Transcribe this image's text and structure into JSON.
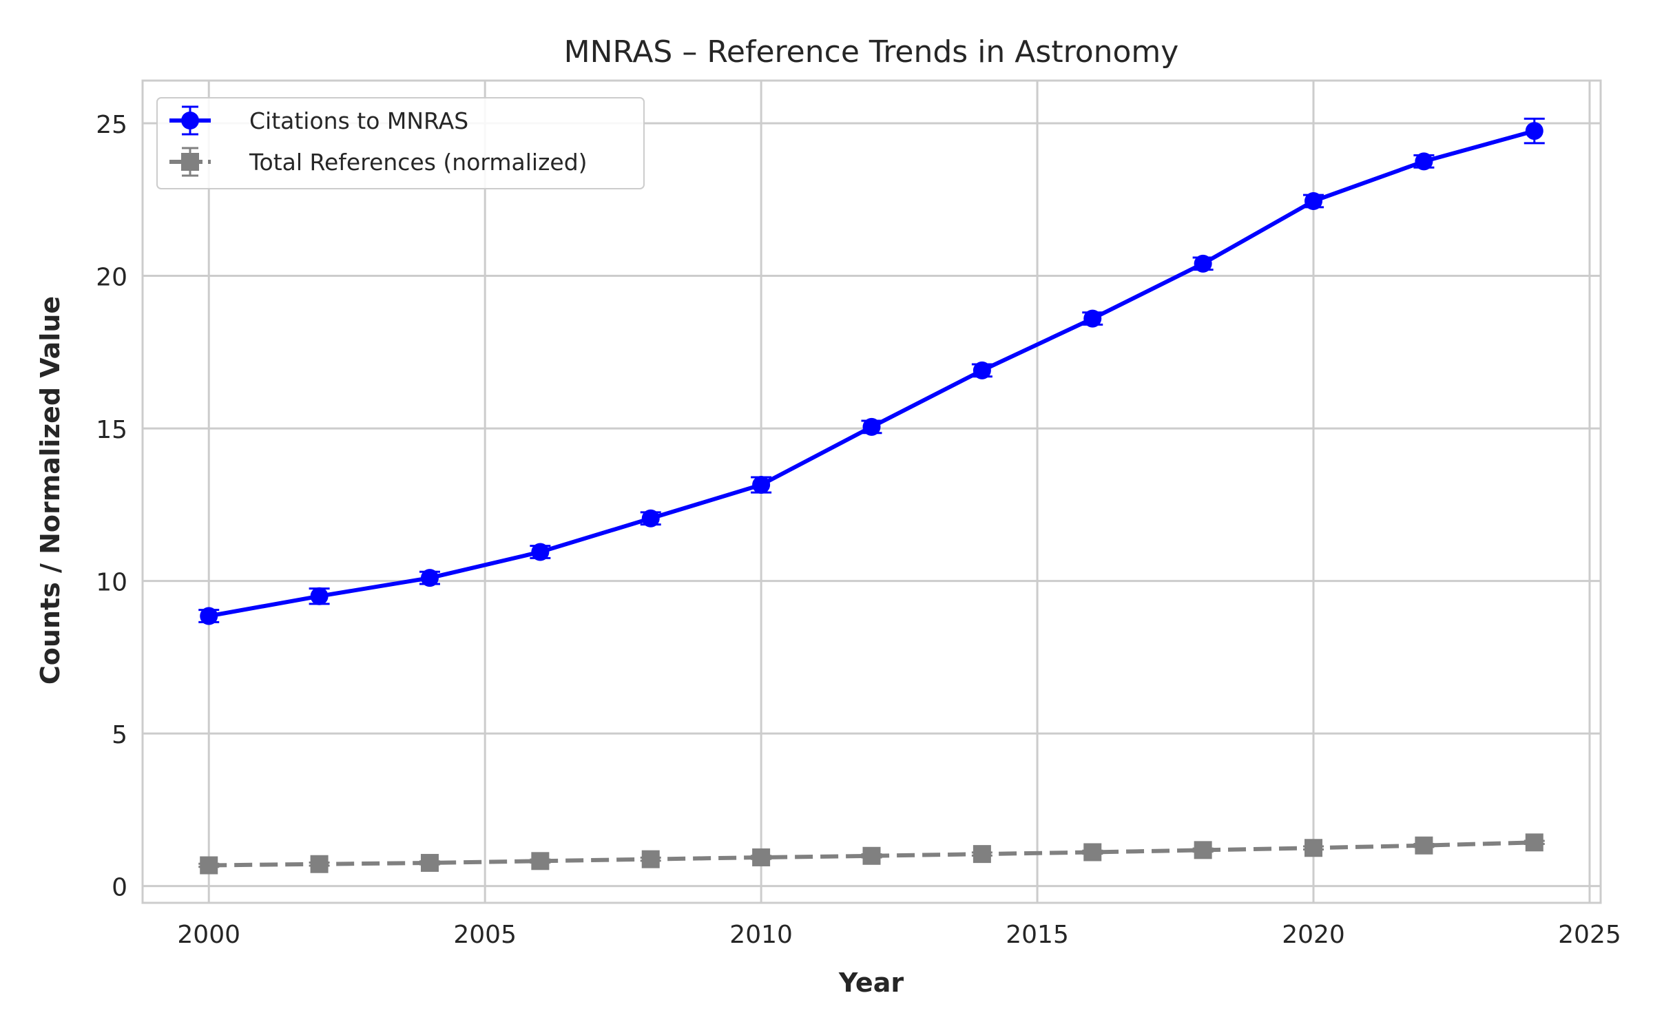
{
  "chart_data": {
    "type": "line",
    "title": "MNRAS – Reference Trends in Astronomy",
    "xlabel": "Year",
    "ylabel": "Counts / Normalized Value",
    "xlim": [
      1998.8,
      2025.2
    ],
    "ylim": [
      -0.55,
      26.4
    ],
    "xticks": [
      2000,
      2005,
      2010,
      2015,
      2020,
      2025
    ],
    "yticks": [
      0,
      5,
      10,
      15,
      20,
      25
    ],
    "grid": true,
    "legend_position": "upper left",
    "x": [
      2000,
      2002,
      2004,
      2006,
      2008,
      2010,
      2012,
      2014,
      2016,
      2018,
      2020,
      2022,
      2024
    ],
    "series": [
      {
        "name": "Citations to MNRAS",
        "color": "#0000ff",
        "marker": "circle",
        "linestyle": "solid",
        "values": [
          8.85,
          9.5,
          10.1,
          10.95,
          12.05,
          13.15,
          15.05,
          16.9,
          18.6,
          20.4,
          22.45,
          23.75,
          24.75
        ],
        "errors": [
          0.2,
          0.25,
          0.2,
          0.2,
          0.2,
          0.25,
          0.2,
          0.2,
          0.2,
          0.2,
          0.2,
          0.2,
          0.4
        ]
      },
      {
        "name": "Total References (normalized)",
        "color": "#808080",
        "marker": "square",
        "linestyle": "dashed",
        "values": [
          0.68,
          0.72,
          0.76,
          0.82,
          0.88,
          0.94,
          0.99,
          1.05,
          1.11,
          1.18,
          1.25,
          1.33,
          1.43
        ],
        "errors": [
          0.05,
          0.05,
          0.05,
          0.05,
          0.05,
          0.05,
          0.05,
          0.05,
          0.05,
          0.05,
          0.05,
          0.05,
          0.05
        ]
      }
    ]
  }
}
